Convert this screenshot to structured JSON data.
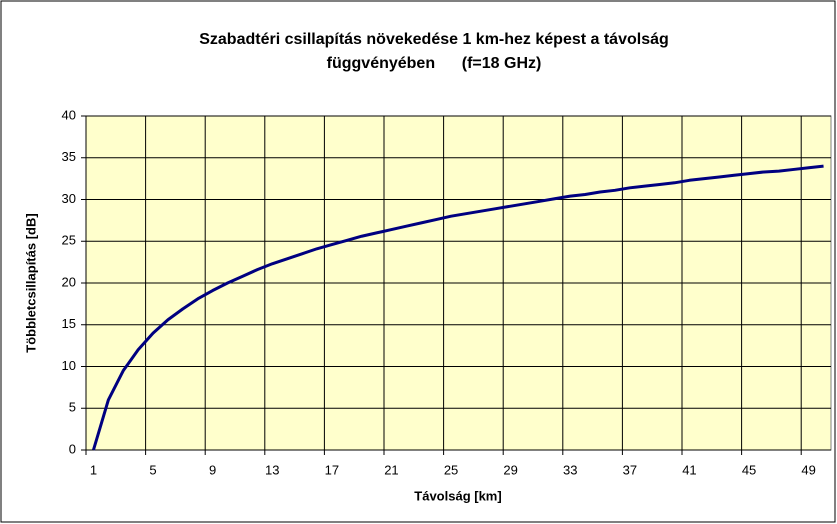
{
  "chart_data": {
    "type": "line",
    "title": [
      "Szabadtéri csillapítás növekedése 1 km-hez képest a távolság",
      "függvényében      (f=18 GHz)"
    ],
    "x_label": "Távolság [km]",
    "y_label": "Többletcsillapítás [dB]",
    "categories": [
      1,
      null,
      null,
      null,
      5,
      null,
      null,
      null,
      9,
      null,
      null,
      null,
      13,
      null,
      null,
      null,
      17,
      null,
      null,
      null,
      21,
      null,
      null,
      null,
      25,
      null,
      null,
      null,
      29,
      null,
      null,
      null,
      33,
      null,
      null,
      null,
      37,
      null,
      null,
      null,
      41,
      null,
      null,
      null,
      45,
      null,
      null,
      null,
      49,
      null
    ],
    "series": [
      {
        "color": "#000080",
        "values": [
          0,
          6.0,
          9.5,
          12.0,
          14.0,
          15.6,
          16.9,
          18.1,
          19.1,
          20.0,
          20.8,
          21.6,
          22.3,
          22.9,
          23.5,
          24.1,
          24.6,
          25.1,
          25.6,
          26.0,
          26.4,
          26.8,
          27.2,
          27.6,
          28.0,
          28.3,
          28.6,
          28.9,
          29.2,
          29.5,
          29.8,
          30.1,
          30.4,
          30.6,
          30.9,
          31.1,
          31.4,
          31.6,
          31.8,
          32.0,
          32.3,
          32.5,
          32.7,
          32.9,
          33.1,
          33.3,
          33.4,
          33.6,
          33.8,
          34.0
        ]
      }
    ],
    "ylim": [
      0,
      40
    ],
    "yticks": [
      0,
      5,
      10,
      15,
      20,
      25,
      30,
      35,
      40
    ],
    "grid": true,
    "plot_background": "#ffffcc"
  }
}
